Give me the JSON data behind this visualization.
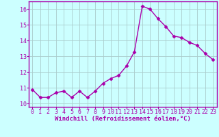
{
  "x": [
    0,
    1,
    2,
    3,
    4,
    5,
    6,
    7,
    8,
    9,
    10,
    11,
    12,
    13,
    14,
    15,
    16,
    17,
    18,
    19,
    20,
    21,
    22,
    23
  ],
  "y": [
    10.9,
    10.4,
    10.4,
    10.7,
    10.8,
    10.4,
    10.8,
    10.4,
    10.8,
    11.3,
    11.6,
    11.8,
    12.4,
    13.3,
    16.2,
    16.0,
    15.4,
    14.9,
    14.3,
    14.2,
    13.9,
    13.7,
    13.2,
    12.8
  ],
  "line_color": "#aa00aa",
  "marker": "D",
  "marker_size": 2.5,
  "bg_color": "#ccffff",
  "grid_color": "#aacccc",
  "xlabel": "Windchill (Refroidissement éolien,°C)",
  "xlabel_color": "#aa00aa",
  "tick_color": "#aa00aa",
  "spine_color": "#aa00aa",
  "ylim": [
    9.8,
    16.5
  ],
  "yticks": [
    10,
    11,
    12,
    13,
    14,
    15,
    16
  ],
  "xticks": [
    0,
    1,
    2,
    3,
    4,
    5,
    6,
    7,
    8,
    9,
    10,
    11,
    12,
    13,
    14,
    15,
    16,
    17,
    18,
    19,
    20,
    21,
    22,
    23
  ],
  "xlabel_fontsize": 6.5,
  "tick_fontsize": 6.0,
  "linewidth": 1.0
}
